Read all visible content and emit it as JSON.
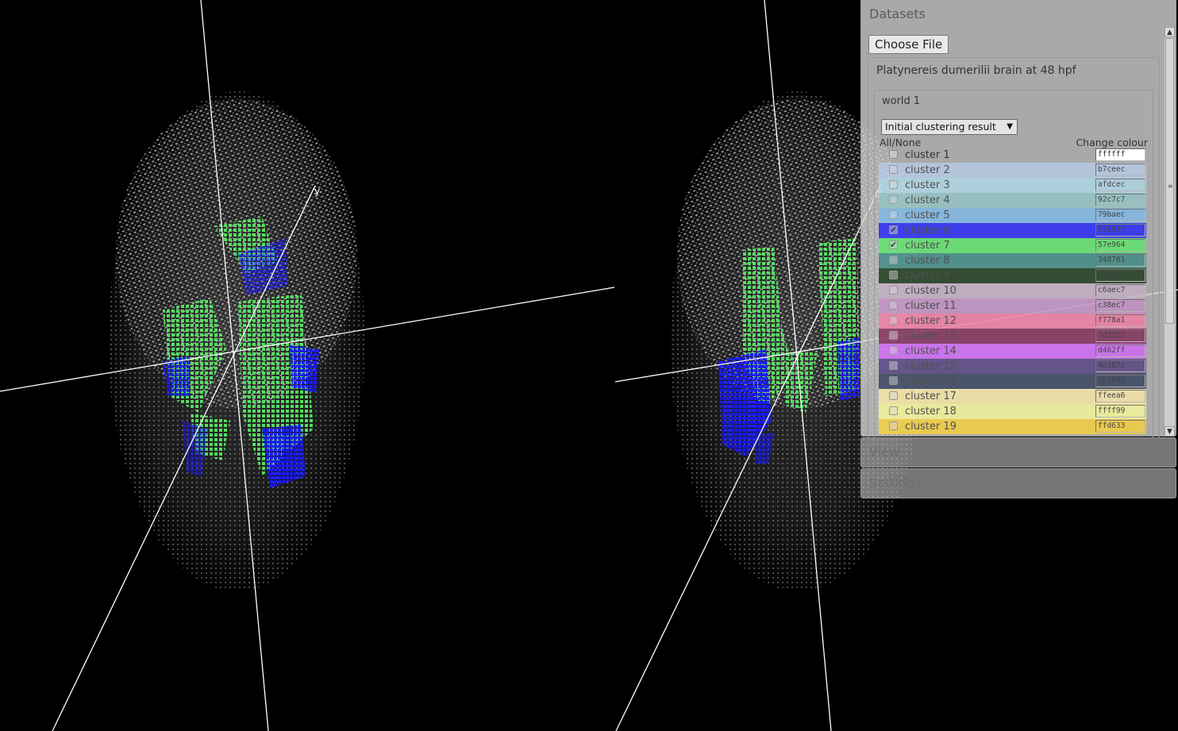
{
  "datasets_panel": {
    "title": "Datasets",
    "choose_file_label": "Choose File",
    "dataset_name": "Platynereis dumerilii brain at 48 hpf",
    "world_name": "world 1",
    "clustering_select_value": "Initial clustering result",
    "all_none_label": "All/None",
    "change_colour_label": "Change colour",
    "clusters": [
      {
        "name": "cluster 1",
        "hex": "ffffff",
        "checked": false
      },
      {
        "name": "cluster 2",
        "hex": "b7ceec",
        "checked": false
      },
      {
        "name": "cluster 3",
        "hex": "afdcec",
        "checked": false
      },
      {
        "name": "cluster 4",
        "hex": "92c7c7",
        "checked": false
      },
      {
        "name": "cluster 5",
        "hex": "79baec",
        "checked": false
      },
      {
        "name": "cluster 6",
        "hex": "1919ff",
        "checked": true
      },
      {
        "name": "cluster 7",
        "hex": "57e964",
        "checked": true
      },
      {
        "name": "cluster 8",
        "hex": "348781",
        "checked": false
      },
      {
        "name": "cluster 9",
        "hex": "0c2d0c",
        "checked": false
      },
      {
        "name": "cluster 10",
        "hex": "c6aec7",
        "checked": false
      },
      {
        "name": "cluster 11",
        "hex": "c38ec7",
        "checked": false
      },
      {
        "name": "cluster 12",
        "hex": "f778a1",
        "checked": false
      },
      {
        "name": "cluster 13",
        "hex": "7d2252",
        "checked": false
      },
      {
        "name": "cluster 14",
        "hex": "d462ff",
        "checked": false
      },
      {
        "name": "cluster 15",
        "hex": "4e387e",
        "checked": false
      },
      {
        "name": "cluster 16",
        "hex": "2b3856",
        "checked": false
      },
      {
        "name": "cluster 17",
        "hex": "ffeea6",
        "checked": false
      },
      {
        "name": "cluster 18",
        "hex": "ffff99",
        "checked": false
      },
      {
        "name": "cluster 19",
        "hex": "ffd633",
        "checked": false
      }
    ]
  },
  "view_panel": {
    "title": "View"
  },
  "settings_panel": {
    "title": "Settings"
  },
  "viewport": {
    "axis_label": "y",
    "background_color": "#000000",
    "cloud_color": "#d9d9d9",
    "axis_color": "#ffffff"
  }
}
